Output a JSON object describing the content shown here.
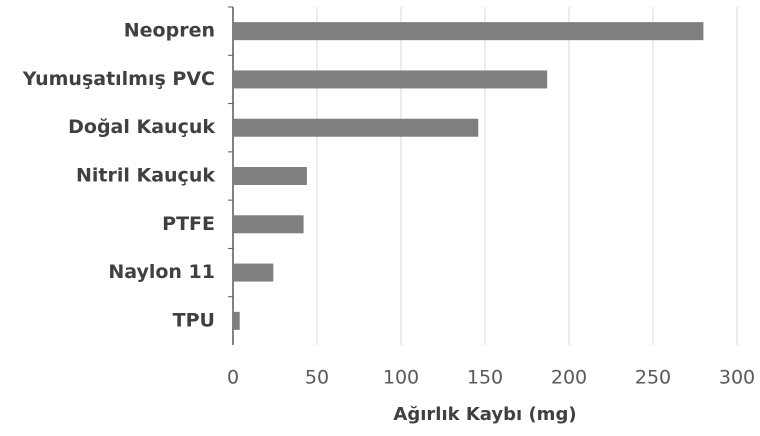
{
  "chart_data": {
    "type": "bar",
    "orientation": "horizontal",
    "xlabel": "Ağırlık Kaybı (mg)",
    "categories": [
      "Neopren",
      "Yumuşatılmış PVC",
      "Doğal Kauçuk",
      "Nitril Kauçuk",
      "PTFE",
      "Naylon 11",
      "TPU"
    ],
    "values": [
      280,
      187,
      146,
      44,
      42,
      24,
      4
    ],
    "color": "#7f7f7f",
    "xlim": [
      0,
      300
    ],
    "xticks": [
      0,
      50,
      100,
      150,
      200,
      250,
      300
    ],
    "grid": true
  }
}
